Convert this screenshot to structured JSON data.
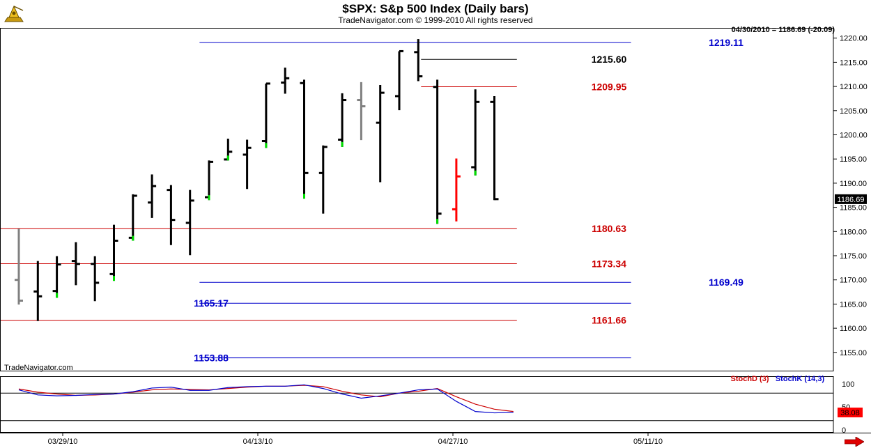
{
  "header": {
    "title": "$SPX:  S&p 500 Index  (Daily bars)",
    "subtitle": "TradeNavigator.com © 1999-2010 All rights reserved",
    "quote": "04/30/2010 = 1186.69 (-20.09)",
    "watermark": "TradeNavigator.com"
  },
  "colors": {
    "black_bar": "#000000",
    "grey_bar": "#808080",
    "red_bar": "#ff0000",
    "green_tick": "#00e000",
    "red_line": "#cc0000",
    "blue_line": "#0000cc",
    "stochD": "#cc0000",
    "stochK": "#0000cc"
  },
  "icons": {
    "logo": "sextant-logo-icon",
    "nav": "scroll-right-arrow-icon"
  },
  "chart_data": [
    {
      "type": "ohlc",
      "title": "$SPX:  S&p 500 Index  (Daily bars)",
      "ylim": [
        1150,
        1225
      ],
      "y_ticks": [
        "1220.00",
        "1215.00",
        "1210.00",
        "1205.00",
        "1200.00",
        "1195.00",
        "1190.00",
        "1185.00",
        "1180.00",
        "1175.00",
        "1170.00",
        "1165.00",
        "1160.00",
        "1155.00"
      ],
      "x_ticks": [
        "03/29/10",
        "04/13/10",
        "04/27/10",
        "05/11/10"
      ],
      "last_price_label": "1186.69",
      "bars": [
        {
          "date": "03/25/10",
          "o": 1170.0,
          "h": 1180.6,
          "l": 1164.9,
          "c": 1165.7,
          "color": "grey"
        },
        {
          "date": "03/26/10",
          "o": 1167.6,
          "h": 1173.9,
          "l": 1161.5,
          "c": 1166.6,
          "color": "black"
        },
        {
          "date": "03/29/10",
          "o": 1167.7,
          "h": 1174.9,
          "l": 1166.3,
          "c": 1173.2,
          "color": "black",
          "gap_up": true
        },
        {
          "date": "03/30/10",
          "o": 1173.9,
          "h": 1177.8,
          "l": 1168.9,
          "c": 1173.3,
          "color": "black"
        },
        {
          "date": "03/31/10",
          "o": 1173.3,
          "h": 1174.9,
          "l": 1165.6,
          "c": 1169.4,
          "color": "black"
        },
        {
          "date": "04/01/10",
          "o": 1171.2,
          "h": 1181.4,
          "l": 1169.8,
          "c": 1178.1,
          "color": "black",
          "gap_up": true
        },
        {
          "date": "04/05/10",
          "o": 1178.7,
          "h": 1187.7,
          "l": 1178.1,
          "c": 1187.4,
          "color": "black",
          "gap_up": true
        },
        {
          "date": "04/06/10",
          "o": 1186.0,
          "h": 1191.8,
          "l": 1182.8,
          "c": 1189.4,
          "color": "black"
        },
        {
          "date": "04/07/10",
          "o": 1188.6,
          "h": 1189.6,
          "l": 1177.2,
          "c": 1182.4,
          "color": "black"
        },
        {
          "date": "04/08/10",
          "o": 1181.8,
          "h": 1188.6,
          "l": 1175.1,
          "c": 1186.4,
          "color": "black"
        },
        {
          "date": "04/09/10",
          "o": 1187.1,
          "h": 1194.7,
          "l": 1186.5,
          "c": 1194.4,
          "color": "black",
          "gap_up": true
        },
        {
          "date": "04/12/10",
          "o": 1194.9,
          "h": 1199.2,
          "l": 1194.7,
          "c": 1196.5,
          "color": "black",
          "gap_up": true
        },
        {
          "date": "04/13/10",
          "o": 1195.9,
          "h": 1199.0,
          "l": 1188.8,
          "c": 1197.3,
          "color": "black"
        },
        {
          "date": "04/14/10",
          "o": 1198.7,
          "h": 1210.6,
          "l": 1197.3,
          "c": 1210.6,
          "color": "black",
          "gap_up": true
        },
        {
          "date": "04/15/10",
          "o": 1210.8,
          "h": 1213.9,
          "l": 1208.5,
          "c": 1211.7,
          "color": "black"
        },
        {
          "date": "04/16/10",
          "o": 1210.7,
          "h": 1211.4,
          "l": 1186.8,
          "c": 1192.1,
          "color": "black",
          "gap_up": true
        },
        {
          "date": "04/19/10",
          "o": 1192.1,
          "h": 1197.8,
          "l": 1183.7,
          "c": 1197.5,
          "color": "black"
        },
        {
          "date": "04/20/10",
          "o": 1199.0,
          "h": 1208.6,
          "l": 1197.5,
          "c": 1207.2,
          "color": "black",
          "gap_up": true
        },
        {
          "date": "04/21/10",
          "o": 1207.2,
          "h": 1210.9,
          "l": 1198.9,
          "c": 1205.9,
          "color": "grey"
        },
        {
          "date": "04/22/10",
          "o": 1202.5,
          "h": 1210.3,
          "l": 1190.2,
          "c": 1208.7,
          "color": "black"
        },
        {
          "date": "04/23/10",
          "o": 1208.0,
          "h": 1217.3,
          "l": 1205.1,
          "c": 1217.3,
          "color": "black"
        },
        {
          "date": "04/26/10",
          "o": 1217.1,
          "h": 1219.8,
          "l": 1211.1,
          "c": 1212.1,
          "color": "black"
        },
        {
          "date": "04/27/10",
          "o": 1209.9,
          "h": 1211.4,
          "l": 1181.6,
          "c": 1183.7,
          "color": "black",
          "gap_up": true
        },
        {
          "date": "04/28/10",
          "o": 1184.6,
          "h": 1195.1,
          "l": 1182.1,
          "c": 1191.4,
          "color": "red"
        },
        {
          "date": "04/29/10",
          "o": 1193.3,
          "h": 1209.4,
          "l": 1191.6,
          "c": 1206.8,
          "color": "black",
          "gap_up": true
        },
        {
          "date": "04/30/10",
          "o": 1206.8,
          "h": 1208.0,
          "l": 1186.5,
          "c": 1186.7,
          "color": "black"
        }
      ],
      "levels": [
        {
          "value": 1219.11,
          "label": "1219.11",
          "color": "blue",
          "from_bar": 9.5,
          "to_bar": 32,
          "label_pos": "right"
        },
        {
          "value": 1215.6,
          "label": "1215.60",
          "color": "black",
          "from_bar": 21,
          "to_bar": 26,
          "label_pos": "mid"
        },
        {
          "value": 1209.95,
          "label": "1209.95",
          "color": "red",
          "from_bar": 21,
          "to_bar": 26,
          "label_pos": "mid"
        },
        {
          "value": 1180.63,
          "label": "1180.63",
          "color": "red",
          "from_bar": -1,
          "to_bar": 26,
          "label_pos": "mid"
        },
        {
          "value": 1173.34,
          "label": "1173.34",
          "color": "red",
          "from_bar": -1,
          "to_bar": 26,
          "label_pos": "mid"
        },
        {
          "value": 1169.49,
          "label": "1169.49",
          "color": "blue",
          "from_bar": 9.5,
          "to_bar": 32,
          "label_pos": "right"
        },
        {
          "value": 1165.17,
          "label": "1165.17",
          "color": "blue",
          "from_bar": 9.5,
          "to_bar": 32,
          "label_pos": "left"
        },
        {
          "value": 1161.66,
          "label": "1161.66",
          "color": "red",
          "from_bar": -1,
          "to_bar": 26,
          "label_pos": "mid"
        },
        {
          "value": 1153.88,
          "label": "1153.88",
          "color": "blue",
          "from_bar": 9.5,
          "to_bar": 32,
          "label_pos": "left"
        }
      ]
    },
    {
      "type": "line",
      "title": "",
      "ylim": [
        0,
        100
      ],
      "y_ticks": [
        "100",
        "50",
        "0"
      ],
      "reference_lines": [
        80,
        20
      ],
      "series": [
        {
          "name": "StochD (3)",
          "values": [
            89,
            82,
            78,
            75,
            76,
            78,
            82,
            87,
            89,
            88,
            87,
            90,
            93,
            95,
            95,
            97,
            94,
            84,
            76,
            72,
            80,
            84,
            90,
            72,
            56,
            45,
            40
          ]
        },
        {
          "name": "StochK (14,3)",
          "values": [
            87,
            76,
            74,
            75,
            77,
            78,
            83,
            91,
            93,
            86,
            86,
            92,
            94,
            95,
            95,
            98,
            90,
            78,
            69,
            74,
            80,
            87,
            89,
            62,
            40,
            37,
            38
          ]
        }
      ],
      "last_value_label": "38.08"
    }
  ]
}
